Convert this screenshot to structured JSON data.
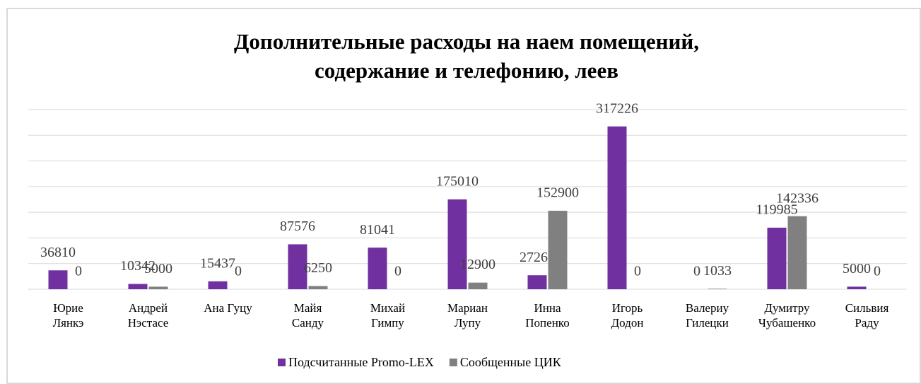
{
  "chart_data": {
    "type": "bar",
    "title": "Дополнительные расходы на наем помещений,\nсодержание и телефонию, леев",
    "categories": [
      "Юрие\nЛянкэ",
      "Андрей\nНэстасе",
      "Ана Гуцу",
      "Майя\nСанду",
      "Михай\nГимпу",
      "Мариан\nЛупу",
      "Инна\nПопенко",
      "Игорь\nДодон",
      "Валериу\nГилецки",
      "Думитру\nЧубашенко",
      "Сильвия\nРаду"
    ],
    "series": [
      {
        "name": "Подсчитанные Promo-LEX",
        "color": "#7030a0",
        "values": [
          36810,
          10342,
          15437,
          87576,
          81041,
          175010,
          27262,
          317226,
          0,
          119985,
          5000
        ]
      },
      {
        "name": "Сообщенные ЦИК",
        "color": "#808080",
        "values": [
          0,
          5000,
          0,
          6250,
          0,
          12900,
          152900,
          0,
          1033,
          142336,
          0
        ]
      }
    ],
    "ylim": [
      0,
      350000
    ],
    "yticks": [
      0,
      50000,
      100000,
      150000,
      200000,
      250000,
      300000,
      350000
    ],
    "grid": true,
    "legend": "bottom"
  }
}
